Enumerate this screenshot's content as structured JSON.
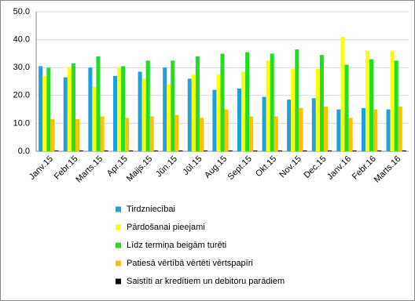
{
  "chart_data": {
    "type": "bar",
    "categories": [
      "Janv.15",
      "Febr.15",
      "Marts.15",
      "Apr.15",
      "Maijs.15",
      "Jūn.15",
      "Jūl.15",
      "Aug.15",
      "Sept.15",
      "Okt.15",
      "Nov.15",
      "Dec.15",
      "Janv.16",
      "Febr.16",
      "Marts.16"
    ],
    "series": [
      {
        "name": "Tirdzniecībai",
        "color": "#1ba1e2",
        "values": [
          30.5,
          26.5,
          30,
          27,
          28.5,
          30,
          26,
          22,
          22.5,
          19.5,
          18.5,
          19,
          15,
          15.5,
          15
        ]
      },
      {
        "name": "Pārdošanai pieejami",
        "color": "#ffff00",
        "values": [
          27,
          30,
          23,
          30,
          26,
          24,
          27.5,
          27.5,
          28.5,
          32.5,
          29.5,
          29.5,
          41,
          36,
          36
        ]
      },
      {
        "name": "Līdz termiņa beigām turēti",
        "color": "#22dd22",
        "values": [
          30,
          31.5,
          34,
          30.5,
          32.5,
          32.5,
          34,
          35,
          35.5,
          35,
          36.5,
          34.5,
          31,
          33,
          32.5
        ]
      },
      {
        "name": "Patiesā vērtībā vērtēti vērtspapīri",
        "color": "#ffc000",
        "values": [
          11.5,
          11.5,
          12.5,
          12,
          12.5,
          13,
          12,
          15,
          12.5,
          12.5,
          15.5,
          16,
          12,
          15,
          16
        ]
      },
      {
        "name": "Saistīti ar kredītiem un debitoru parādiem",
        "color": "#000000",
        "values": [
          0.3,
          0.3,
          0.3,
          0.3,
          0.3,
          0.3,
          0.3,
          0.3,
          0.3,
          0.3,
          0.3,
          0.3,
          0.3,
          0.3,
          0.3
        ]
      }
    ],
    "ylim": [
      0,
      50
    ],
    "yticks": [
      {
        "value": 0,
        "label": "0.0"
      },
      {
        "value": 10,
        "label": "10.0"
      },
      {
        "value": 20,
        "label": "20.0"
      },
      {
        "value": 30,
        "label": "30.0"
      },
      {
        "value": 40,
        "label": "40.0"
      },
      {
        "value": 50,
        "label": "50.0"
      }
    ],
    "grid": true
  }
}
